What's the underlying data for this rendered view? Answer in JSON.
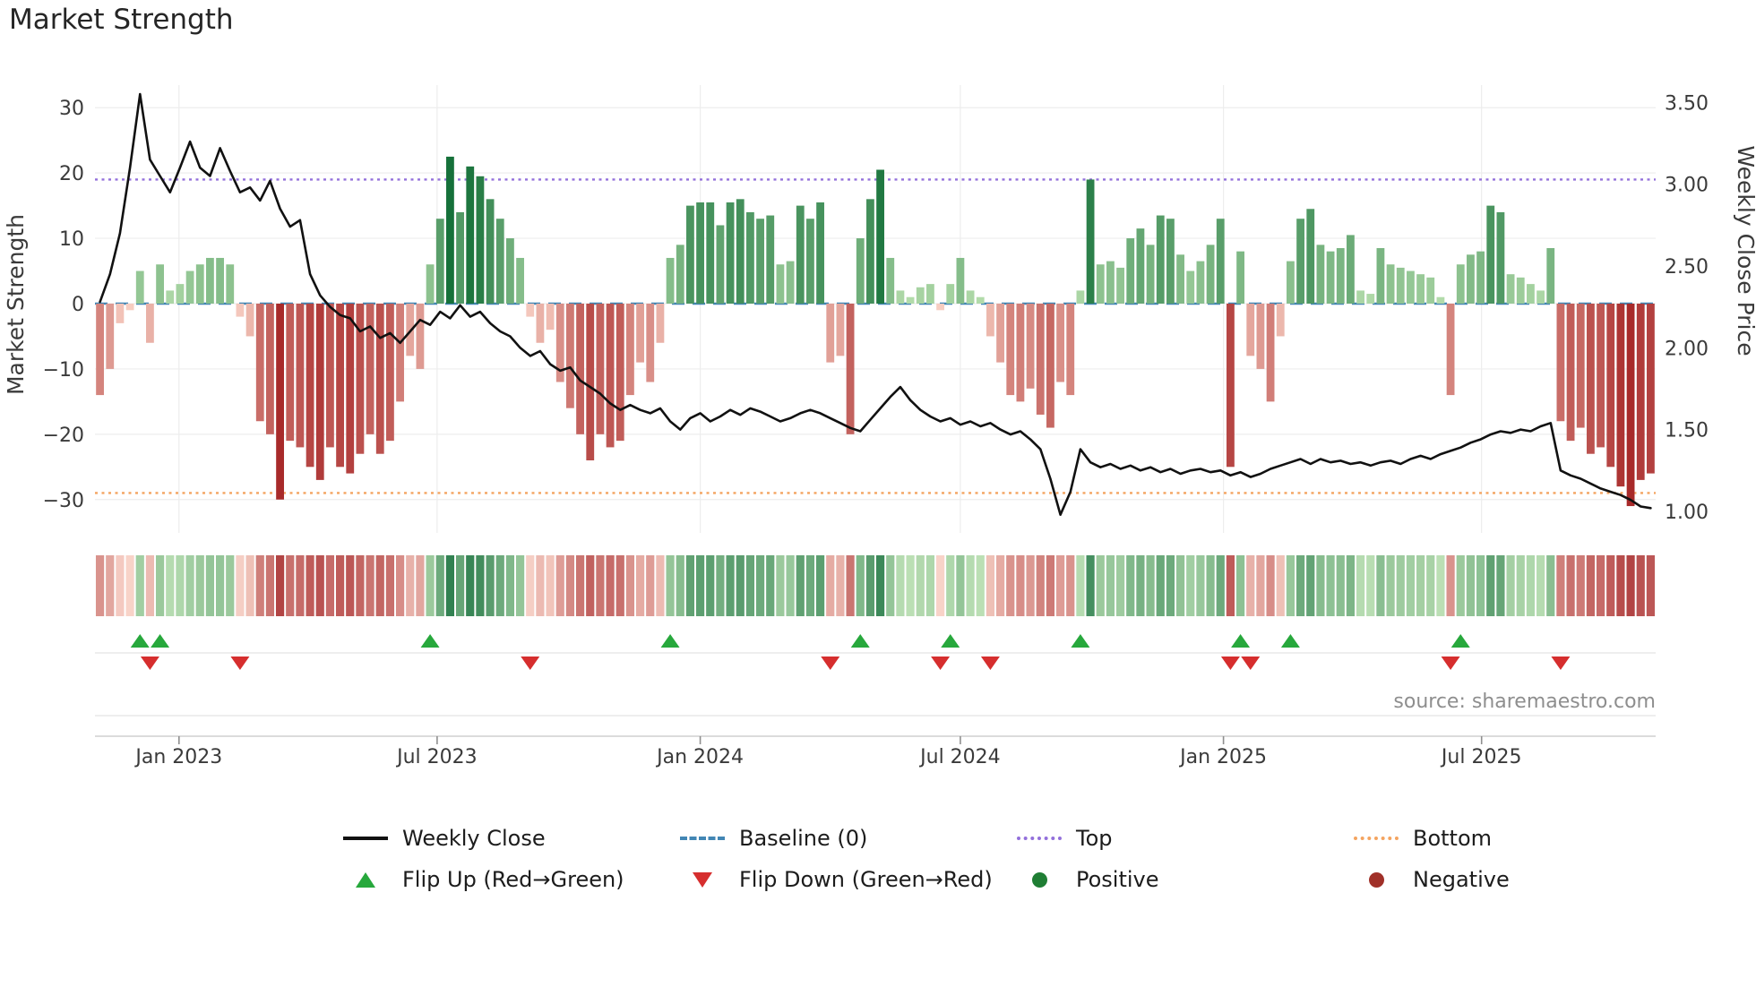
{
  "title": "Market Strength",
  "source": "source: sharemaestro.com",
  "legend": {
    "weekly_close": "Weekly Close",
    "baseline": "Baseline (0)",
    "top": "Top",
    "bottom": "Bottom",
    "flip_up": "Flip Up (Red→Green)",
    "flip_down": "Flip Down (Green→Red)",
    "positive": "Positive",
    "negative": "Negative"
  },
  "colors": {
    "bar_green_light": "#b2dbaa",
    "bar_green_dark": "#16713a",
    "bar_red_light": "#f7cdc1",
    "bar_red_dark": "#a82a2a",
    "price_line": "#111111",
    "baseline": "#4286b4",
    "top_line": "#9370db",
    "bottom_line": "#f4a460",
    "flip_up": "#27a83c",
    "flip_down": "#d62e2e",
    "positive_dot": "#1f7e34",
    "negative_dot": "#a03028",
    "grid": "#ededed",
    "axis_text": "#3a3a3a",
    "source_text": "#8e8e8e"
  },
  "chart_data": {
    "type": "combo-bar-line",
    "n_weeks": 156,
    "x_ticks": {
      "labels": [
        "Jan 2023",
        "Jul 2023",
        "Jan 2024",
        "Jul 2024",
        "Jan 2025",
        "Jul 2025"
      ],
      "positions_weeks": [
        7.9,
        33.7,
        60.0,
        86.0,
        112.3,
        138.1
      ]
    },
    "left_axis": {
      "label": "Market Strength",
      "tick_values": [
        30,
        20,
        10,
        0,
        -10,
        -20,
        -30
      ],
      "tick_labels": [
        "30",
        "20",
        "10",
        "0",
        "−10",
        "−20",
        "−30"
      ],
      "ylim": [
        -35,
        33.4
      ]
    },
    "right_axis": {
      "label": "Weekly Close Price",
      "tick_values": [
        3.5,
        3.0,
        2.5,
        2.0,
        1.5,
        1.0
      ],
      "tick_labels": [
        "3.50",
        "3.00",
        "2.50",
        "2.00",
        "1.50",
        "1.00"
      ],
      "ylim": [
        0.87,
        3.61
      ]
    },
    "series": [
      {
        "name": "Market Strength",
        "type": "bar",
        "axis": "left",
        "values": [
          -14,
          -10,
          -3,
          -1,
          5,
          -6,
          6,
          2,
          3,
          5,
          6,
          7,
          7,
          6,
          -2,
          -5,
          -18,
          -20,
          -30,
          -21,
          -22,
          -25,
          -27,
          -22,
          -25,
          -26,
          -23,
          -20,
          -23,
          -21,
          -15,
          -8,
          -10,
          6,
          13,
          22.5,
          14,
          21,
          19.5,
          16,
          13,
          10,
          7,
          -2,
          -6,
          -4,
          -12,
          -16,
          -20,
          -24,
          -20,
          -22,
          -21,
          -14,
          -9,
          -12,
          -6,
          7,
          9,
          15,
          15.5,
          15.5,
          12,
          15.5,
          16,
          14,
          13,
          13.5,
          6,
          6.5,
          15,
          13,
          15.5,
          -9,
          -8,
          -20,
          10,
          16,
          20.5,
          7,
          2,
          1,
          2.5,
          3,
          -1,
          3,
          7,
          2,
          1,
          -5,
          -9,
          -14,
          -15,
          -13,
          -17,
          -19,
          -12,
          -14,
          2,
          19,
          6,
          6.5,
          5.5,
          10,
          11.5,
          9,
          13.5,
          13,
          7.5,
          5,
          6.5,
          9,
          13,
          -25,
          8,
          -8,
          -10,
          -15,
          -5,
          6.5,
          13,
          14.5,
          9,
          8,
          8.5,
          10.5,
          2,
          1.5,
          8.5,
          6,
          5.5,
          5,
          4.5,
          4,
          1,
          -14,
          6,
          7.5,
          8,
          15,
          14,
          4.5,
          4,
          3,
          2,
          8.5,
          -18,
          -21,
          -19,
          -23,
          -22,
          -25,
          -28,
          -31,
          -27,
          -26
        ]
      },
      {
        "name": "Weekly Close",
        "type": "line",
        "axis": "right",
        "values": [
          2.28,
          2.45,
          2.7,
          3.1,
          3.55,
          3.15,
          3.05,
          2.95,
          3.1,
          3.26,
          3.1,
          3.05,
          3.22,
          3.08,
          2.95,
          2.98,
          2.9,
          3.02,
          2.85,
          2.74,
          2.78,
          2.45,
          2.32,
          2.25,
          2.2,
          2.18,
          2.1,
          2.13,
          2.06,
          2.09,
          2.03,
          2.1,
          2.17,
          2.14,
          2.22,
          2.18,
          2.26,
          2.19,
          2.22,
          2.15,
          2.1,
          2.07,
          2.0,
          1.95,
          1.98,
          1.9,
          1.86,
          1.88,
          1.8,
          1.76,
          1.72,
          1.66,
          1.62,
          1.65,
          1.62,
          1.6,
          1.63,
          1.55,
          1.5,
          1.57,
          1.6,
          1.55,
          1.58,
          1.62,
          1.59,
          1.63,
          1.61,
          1.58,
          1.55,
          1.57,
          1.6,
          1.62,
          1.6,
          1.57,
          1.54,
          1.51,
          1.49,
          1.56,
          1.63,
          1.7,
          1.76,
          1.68,
          1.62,
          1.58,
          1.55,
          1.57,
          1.53,
          1.55,
          1.52,
          1.54,
          1.5,
          1.47,
          1.49,
          1.44,
          1.38,
          1.2,
          0.98,
          1.12,
          1.38,
          1.3,
          1.27,
          1.29,
          1.26,
          1.28,
          1.25,
          1.27,
          1.24,
          1.26,
          1.23,
          1.25,
          1.26,
          1.24,
          1.25,
          1.22,
          1.24,
          1.21,
          1.23,
          1.26,
          1.28,
          1.3,
          1.32,
          1.29,
          1.32,
          1.3,
          1.31,
          1.29,
          1.3,
          1.28,
          1.3,
          1.31,
          1.29,
          1.32,
          1.34,
          1.32,
          1.35,
          1.37,
          1.39,
          1.42,
          1.44,
          1.47,
          1.49,
          1.48,
          1.5,
          1.49,
          1.52,
          1.54,
          1.25,
          1.22,
          1.2,
          1.17,
          1.14,
          1.12,
          1.1,
          1.07,
          1.03,
          1.02
        ]
      }
    ],
    "reference_lines": [
      {
        "name": "Baseline (0)",
        "axis": "left",
        "value": 0,
        "style": "dashed",
        "color": "#4286b4"
      },
      {
        "name": "Top",
        "axis": "left",
        "value": 19,
        "style": "dotted",
        "color": "#9370db"
      },
      {
        "name": "Bottom",
        "axis": "left",
        "value": -29,
        "style": "dotted",
        "color": "#f4a460"
      }
    ],
    "flip_up_indices": [
      4,
      6,
      33,
      57,
      76,
      85,
      98,
      114,
      119,
      136
    ],
    "flip_down_indices": [
      5,
      14,
      43,
      73,
      84,
      89,
      113,
      115,
      135,
      146
    ],
    "heatmap": {
      "source": "strength-values",
      "rows": 1
    }
  }
}
